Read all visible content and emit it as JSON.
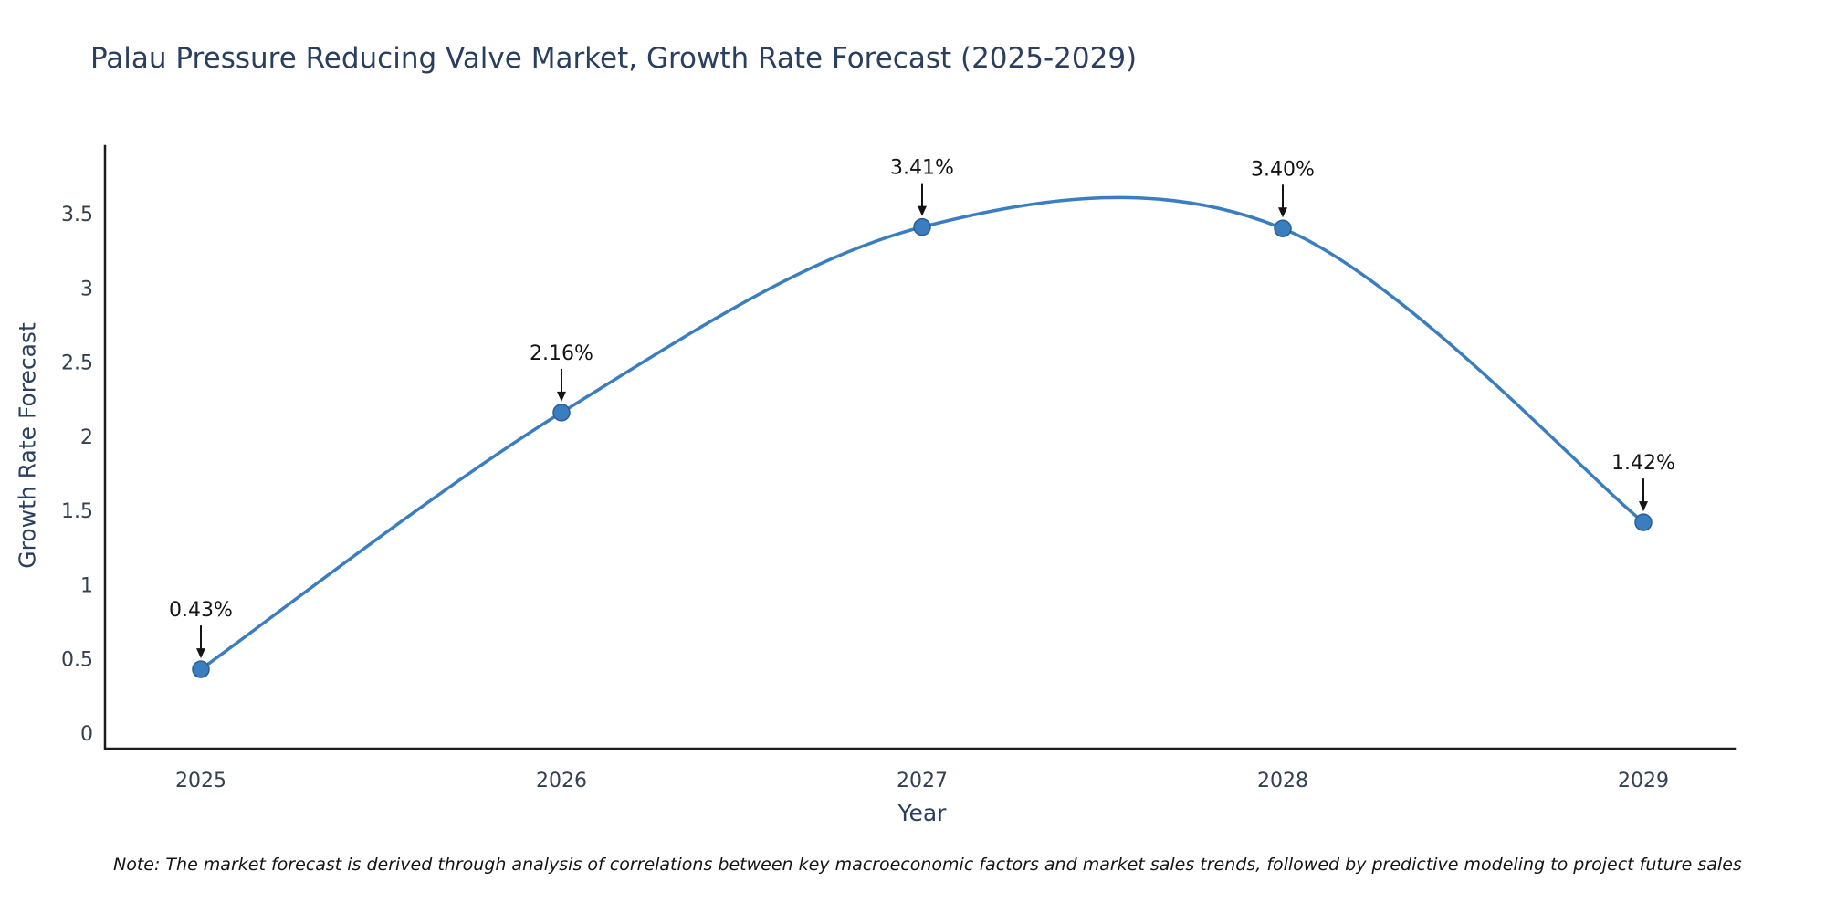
{
  "note": "Note: The market forecast is derived through analysis of correlations between key macroeconomic factors and market sales trends, followed by predictive modeling to project future sales",
  "chart_data": {
    "type": "line",
    "curve": "spline",
    "title": "Palau Pressure Reducing Valve Market, Growth Rate Forecast (2025-2029)",
    "xlabel": "Year",
    "ylabel": "Growth Rate Forecast",
    "x": [
      2025,
      2026,
      2027,
      2028,
      2029
    ],
    "values": [
      0.43,
      2.16,
      3.41,
      3.4,
      1.42
    ],
    "point_labels": [
      "0.43%",
      "2.16%",
      "3.41%",
      "3.40%",
      "1.42%"
    ],
    "xticks": [
      "2025",
      "2026",
      "2027",
      "2028",
      "2029"
    ],
    "yticks": [
      0,
      0.5,
      1,
      1.5,
      2,
      2.5,
      3,
      3.5
    ],
    "ylim": [
      -0.11,
      3.95
    ],
    "grid": false,
    "legend": "none",
    "line_color": "#3a7ebf",
    "marker_color": "#3a7ebf",
    "marker_edge_color": "#295e8f",
    "annotation_color": "#141414",
    "axis_color": "#1c1c1c",
    "tick_color": "#33404f",
    "title_color": "#2a3f5f"
  }
}
